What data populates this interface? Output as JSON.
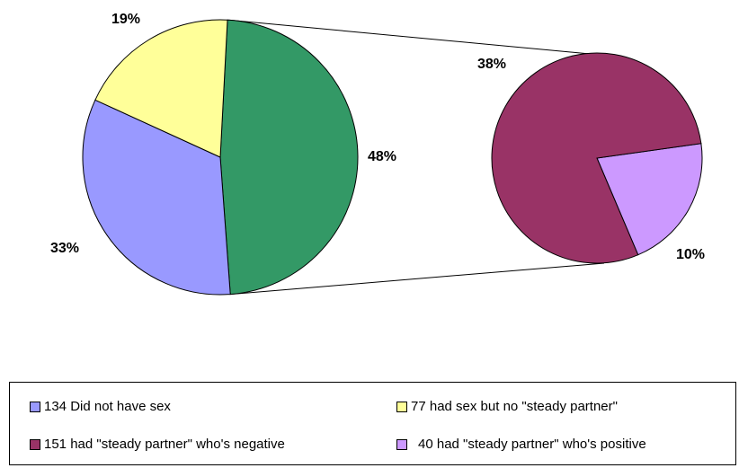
{
  "chart_data": {
    "type": "bar-of-pie",
    "main_pie": {
      "slices": [
        {
          "legend_key": "steady_partner_total",
          "percent": 48,
          "label": "48%",
          "color": "#339966"
        },
        {
          "legend_key": "no_sex",
          "percent": 33,
          "label": "33%",
          "color": "#9999ff"
        },
        {
          "legend_key": "no_steady_partner",
          "percent": 19,
          "label": "19%",
          "color": "#ffff99"
        }
      ]
    },
    "secondary_pie": {
      "exploded_from": "steady_partner_total",
      "slices": [
        {
          "legend_key": "partner_negative",
          "percent": 38,
          "label": "38%",
          "color": "#993366"
        },
        {
          "legend_key": "partner_positive",
          "percent": 10,
          "label": "10%",
          "color": "#cc99ff"
        }
      ]
    },
    "legend": {
      "position": "bottom",
      "entries": [
        {
          "key": "no_sex",
          "label": "134 Did not have sex",
          "color": "#9999ff"
        },
        {
          "key": "no_steady_partner",
          "label": "77 had sex but no \"steady partner\"",
          "color": "#ffff99"
        },
        {
          "key": "partner_negative",
          "label": "151 had \"steady partner\" who's negative",
          "color": "#993366"
        },
        {
          "key": "partner_positive",
          "label": "40 had \"steady partner\" who's positive",
          "color": "#cc99ff"
        }
      ]
    }
  }
}
